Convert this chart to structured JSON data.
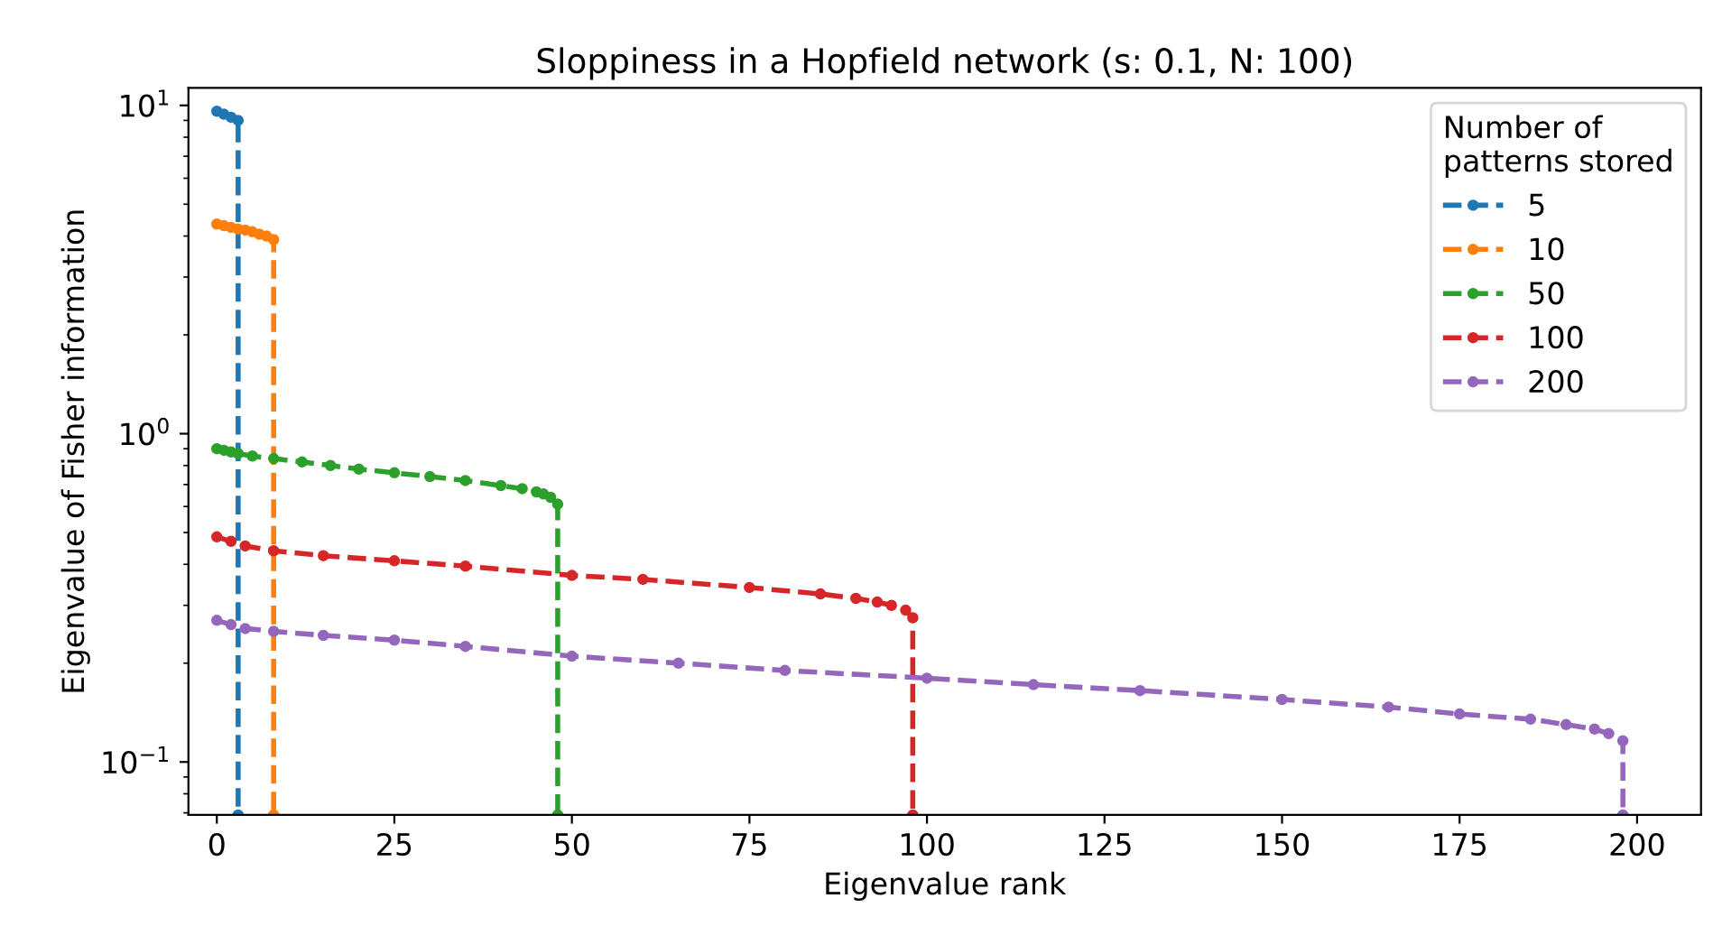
{
  "chart_data": {
    "type": "line",
    "title": "Sloppiness in a Hopfield network (s: 0.1, N: 100)",
    "xlabel": "Eigenvalue rank",
    "ylabel": "Eigenvalue of Fisher information",
    "log": "y",
    "xlim": [
      -4,
      209
    ],
    "ylim": [
      0.069,
      11.3
    ],
    "xticks": [
      0,
      25,
      50,
      75,
      100,
      125,
      150,
      175,
      200
    ],
    "yticks": [
      {
        "value": 0.1,
        "label": "10$^{−1}$"
      },
      {
        "value": 1,
        "label": "10$^{0}$"
      },
      {
        "value": 10,
        "label": "10$^{1}$"
      }
    ],
    "legend": "top right",
    "legend_title": "Number of\npatterns stored",
    "marker": "circle",
    "line_style": "dashed",
    "grid": false,
    "series": [
      {
        "name": "5",
        "color": "#1f77b4",
        "x": [
          0,
          1,
          2,
          3,
          3
        ],
        "values": [
          9.6,
          9.4,
          9.2,
          9.0,
          0.069
        ]
      },
      {
        "name": "10",
        "color": "#ff7f0e",
        "x": [
          0,
          1,
          2,
          3,
          4,
          5,
          6,
          7,
          8,
          8
        ],
        "values": [
          4.35,
          4.3,
          4.25,
          4.2,
          4.17,
          4.12,
          4.05,
          4.0,
          3.9,
          0.069
        ]
      },
      {
        "name": "50",
        "color": "#2ca02c",
        "x": [
          0,
          1,
          2,
          3,
          5,
          8,
          12,
          16,
          20,
          25,
          30,
          35,
          40,
          43,
          45,
          46,
          47,
          48,
          48
        ],
        "values": [
          0.9,
          0.89,
          0.88,
          0.87,
          0.855,
          0.84,
          0.82,
          0.8,
          0.78,
          0.76,
          0.74,
          0.72,
          0.695,
          0.68,
          0.665,
          0.655,
          0.64,
          0.61,
          0.069
        ]
      },
      {
        "name": "100",
        "color": "#d62728",
        "x": [
          0,
          2,
          4,
          8,
          15,
          25,
          35,
          50,
          60,
          75,
          85,
          90,
          93,
          95,
          97,
          98,
          98
        ],
        "values": [
          0.485,
          0.47,
          0.455,
          0.44,
          0.425,
          0.41,
          0.395,
          0.37,
          0.36,
          0.34,
          0.325,
          0.315,
          0.307,
          0.3,
          0.29,
          0.275,
          0.069
        ]
      },
      {
        "name": "200",
        "color": "#9467bd",
        "x": [
          0,
          2,
          4,
          8,
          15,
          25,
          35,
          50,
          65,
          80,
          100,
          115,
          130,
          150,
          165,
          175,
          185,
          190,
          194,
          196,
          198,
          198
        ],
        "values": [
          0.27,
          0.262,
          0.255,
          0.25,
          0.243,
          0.235,
          0.225,
          0.21,
          0.2,
          0.19,
          0.18,
          0.172,
          0.165,
          0.155,
          0.147,
          0.14,
          0.135,
          0.13,
          0.126,
          0.122,
          0.116,
          0.069
        ]
      }
    ]
  }
}
